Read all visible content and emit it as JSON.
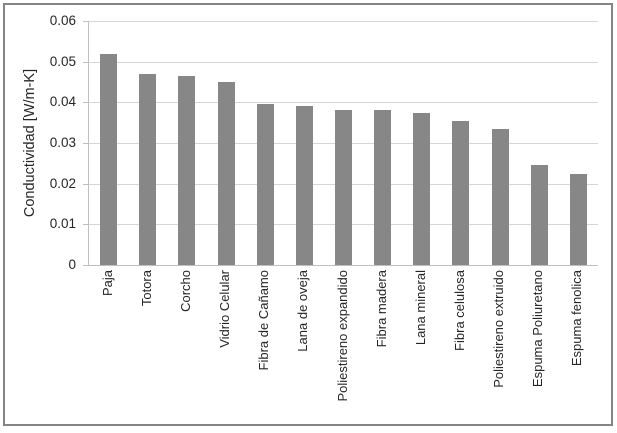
{
  "chart_data": {
    "type": "bar",
    "title": "",
    "xlabel": "",
    "ylabel": "Conductividad [W/m-K]",
    "ylim": [
      0,
      0.06
    ],
    "yticks": [
      0,
      0.01,
      0.02,
      0.03,
      0.04,
      0.05,
      0.06
    ],
    "ytick_labels": [
      "0",
      "0.01",
      "0.02",
      "0.03",
      "0.04",
      "0.05",
      "0.06"
    ],
    "grid": "horizontal-on",
    "legend": "none",
    "categories": [
      "Paja",
      "Totora",
      "Corcho",
      "Vidrio Celular",
      "Fibra de Cañamo",
      "Lana de oveja",
      "Poliestireno expandido",
      "Fibra madera",
      "Lana mineral",
      "Fibra celulosa",
      "Poliestireno extruido",
      "Espuma Poliuretano",
      "Espuma fenolica"
    ],
    "values": [
      0.052,
      0.047,
      0.0465,
      0.045,
      0.0395,
      0.039,
      0.038,
      0.038,
      0.0375,
      0.0355,
      0.0335,
      0.0245,
      0.0225
    ]
  },
  "colors": {
    "bar": "#878787",
    "gridline": "#d6d6d6",
    "axis": "#bfbfbf",
    "text": "#262626",
    "frame": "#858585",
    "background": "#ffffff"
  }
}
